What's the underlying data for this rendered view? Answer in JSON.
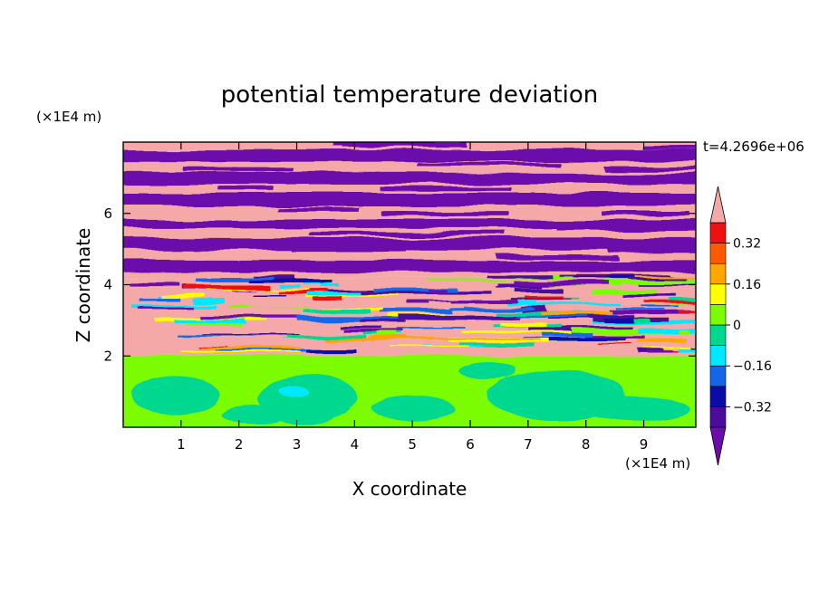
{
  "chart_data": {
    "type": "heatmap",
    "title": "potential temperature deviation",
    "xlabel": "X coordinate",
    "ylabel": "Z coordinate",
    "x_unit": "(×1E4 m)",
    "y_unit": "(×1E4 m)",
    "time_label": "t=4.2696e+06",
    "xlim": [
      0,
      9.9
    ],
    "ylim": [
      0,
      8
    ],
    "x_ticks": [
      1,
      2,
      3,
      4,
      5,
      6,
      7,
      8,
      9
    ],
    "y_ticks": [
      2,
      4,
      6
    ],
    "colorbar": {
      "levels": [
        -0.4,
        -0.32,
        -0.24,
        -0.16,
        -0.08,
        0,
        0.08,
        0.16,
        0.24,
        0.32,
        0.4
      ],
      "labeled_ticks": [
        0.32,
        0.16,
        0,
        -0.16,
        -0.32
      ],
      "tick_labels": [
        "0.32",
        "0.16",
        "0",
        "−0.16",
        "−0.32"
      ],
      "colors": [
        "#6a0dab",
        "#4b0b9b",
        "#0b0ba8",
        "#1366e8",
        "#00e8ff",
        "#00d890",
        "#7cfc00",
        "#ffff00",
        "#ffa500",
        "#ff5a00",
        "#f01010",
        "#f4a8a8"
      ],
      "extend": "both"
    },
    "regions": [
      {
        "z_min": 0,
        "z_max": 2,
        "description": "near-neutral lower layer",
        "dominant": "#7cfc00",
        "secondary": "#00d890"
      },
      {
        "z_min": 2,
        "z_max": 4.2,
        "description": "turbulent mixing layer",
        "dominant": "mixed"
      },
      {
        "z_min": 4.2,
        "z_max": 8,
        "description": "alternating layers",
        "dominant": "#f4a8a8",
        "secondary": "#6a0dab"
      }
    ]
  }
}
